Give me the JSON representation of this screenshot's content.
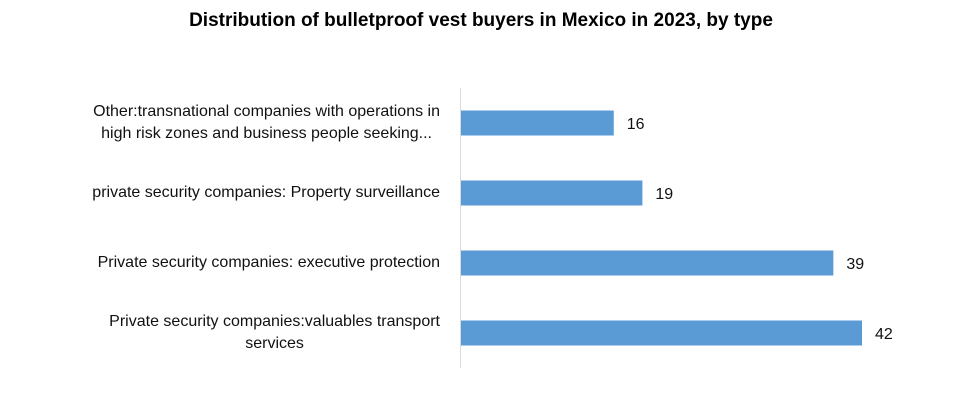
{
  "chart_data": {
    "type": "bar",
    "orientation": "horizontal",
    "title": "Distribution of bulletproof vest buyers in Mexico in 2023, by type",
    "categories": [
      "Other:transnational companies with operations in\nhigh risk zones and business people seeking...",
      "private security companies: Property surveillance",
      "Private security companies: executive protection",
      "Private security companies:valuables transport\nservices"
    ],
    "values": [
      16,
      19,
      39,
      42
    ],
    "data_labels": [
      "16",
      "19",
      "39",
      "42"
    ],
    "xlabel": "",
    "ylabel": "",
    "xlim": [
      0,
      42
    ],
    "grid": false,
    "bar_color": "#5b9bd5",
    "axis_color": "#d9d9d9"
  }
}
